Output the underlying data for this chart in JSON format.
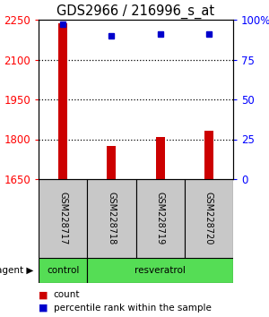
{
  "title": "GDS2966 / 216996_s_at",
  "samples": [
    "GSM228717",
    "GSM228718",
    "GSM228719",
    "GSM228720"
  ],
  "bar_values": [
    2235,
    1775,
    1808,
    1832
  ],
  "percentile_values": [
    97,
    90,
    91,
    91
  ],
  "y_min": 1650,
  "y_max": 2250,
  "y_ticks": [
    1650,
    1800,
    1950,
    2100,
    2250
  ],
  "y_right_ticks": [
    0,
    25,
    50,
    75,
    100
  ],
  "bar_color": "#cc0000",
  "percentile_color": "#0000cc",
  "bar_width": 0.18,
  "agent_labels": [
    "control",
    "resveratrol"
  ],
  "agent_sample_counts": [
    1,
    3
  ],
  "agent_color": "#55dd55",
  "sample_box_color": "#c8c8c8",
  "background_color": "#ffffff",
  "legend_count_label": "count",
  "legend_pct_label": "percentile rank within the sample",
  "title_fontsize": 10.5,
  "tick_fontsize": 8.5,
  "sample_fontsize": 7.0,
  "agent_fontsize": 7.5,
  "legend_fontsize": 7.5,
  "grid_linestyle": "dotted",
  "grid_linewidth": 0.9,
  "grid_ticks": [
    2100,
    1950,
    1800
  ]
}
